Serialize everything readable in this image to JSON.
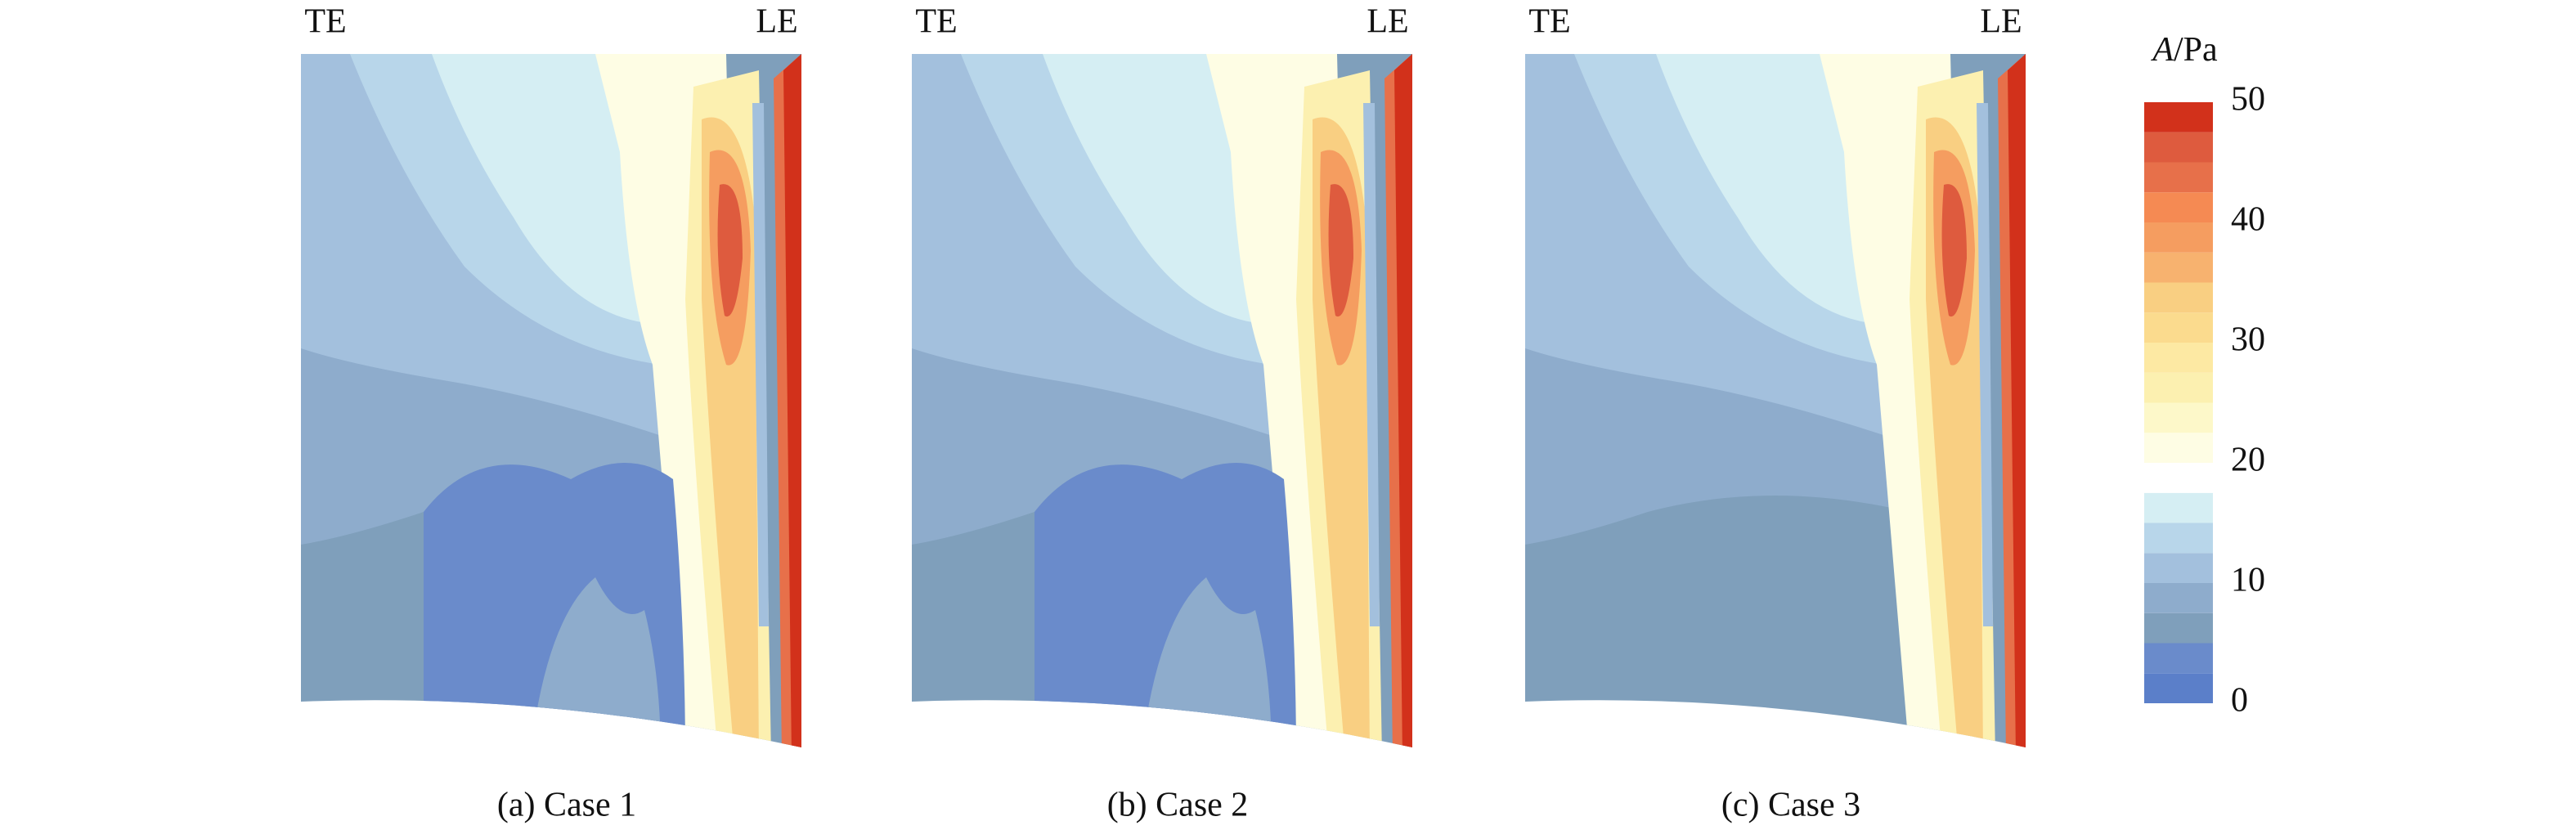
{
  "chart_data": {
    "type": "contour",
    "panels": [
      {
        "caption": "(a) Case 1",
        "left_label": "TE",
        "right_label": "LE"
      },
      {
        "caption": "(b) Case 2",
        "left_label": "TE",
        "right_label": "LE"
      },
      {
        "caption": "(c) Case 3",
        "left_label": "TE",
        "right_label": "LE"
      }
    ],
    "colorbar": {
      "label_var": "A",
      "label_unit": "/Pa",
      "zlim": [
        0,
        50
      ],
      "ticks": [
        0,
        10,
        20,
        30,
        40,
        50
      ],
      "levels": [
        0,
        2.5,
        5,
        7.5,
        10,
        12.5,
        15,
        17.5,
        20,
        22.5,
        25,
        27.5,
        30,
        32.5,
        35,
        37.5,
        40,
        42.5,
        45,
        47.5,
        50
      ],
      "colors": [
        "#5b7fc9",
        "#6a8bcb",
        "#7f9fbb",
        "#8eaccc",
        "#a3c0dd",
        "#b8d6ea",
        "#d5eef3",
        "#ffffff",
        "#fefde4",
        "#fdf8c9",
        "#fcf0b0",
        "#fde9a3",
        "#fbdb8e",
        "#f9cf82",
        "#f7b26f",
        "#f59d60",
        "#f58a53",
        "#e7704a",
        "#de5b3e",
        "#d2311b"
      ]
    }
  }
}
